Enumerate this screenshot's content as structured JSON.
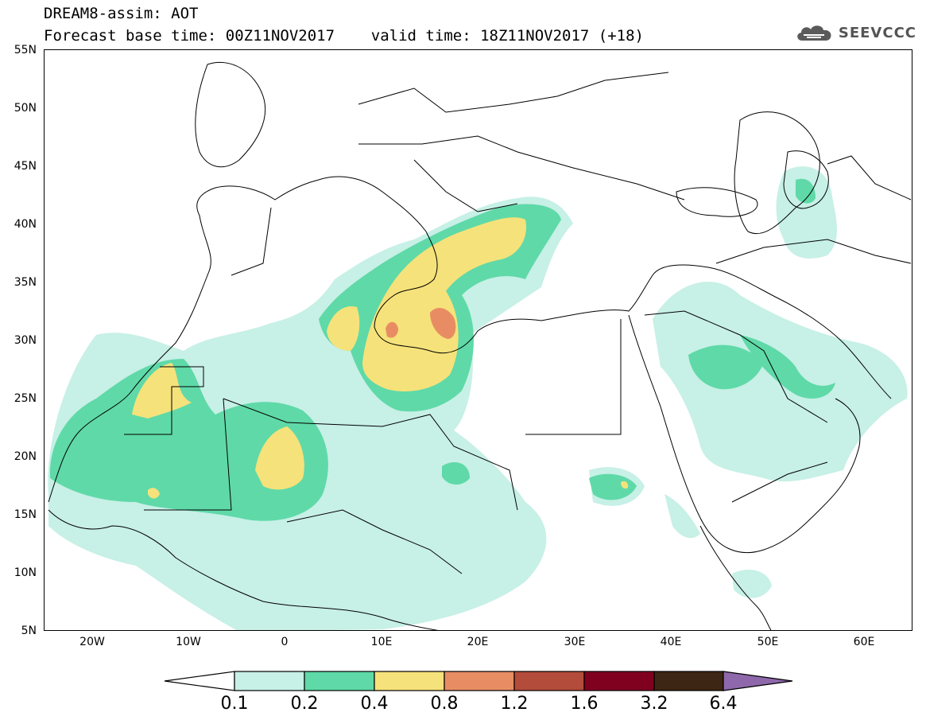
{
  "header": {
    "title_line1": "DREAM8-assim: AOT",
    "title_line2": "Forecast base time: 00Z11NOV2017    valid time: 18Z11NOV2017 (+18)"
  },
  "logo": {
    "text": "SEEVCCC",
    "icon": "cloud-icon",
    "color": "#555555"
  },
  "map": {
    "projection": "lat-lon",
    "lon_range": [
      -25,
      65
    ],
    "lat_range": [
      5,
      55
    ],
    "lat_labels": [
      "5N",
      "10N",
      "15N",
      "20N",
      "25N",
      "30N",
      "35N",
      "40N",
      "45N",
      "50N",
      "55N"
    ],
    "lon_labels": [
      "20W",
      "10W",
      "0",
      "10E",
      "20E",
      "30E",
      "40E",
      "50E",
      "60E"
    ]
  },
  "legend": {
    "thresholds": [
      "0.1",
      "0.2",
      "0.4",
      "0.8",
      "1.2",
      "1.6",
      "3.2",
      "6.4"
    ],
    "colors": [
      "#ffffff",
      "#c7f0e6",
      "#5fd9a8",
      "#f6e27a",
      "#e88d63",
      "#b34c3a",
      "#800020",
      "#3d2614",
      "#8e68ab"
    ]
  }
}
